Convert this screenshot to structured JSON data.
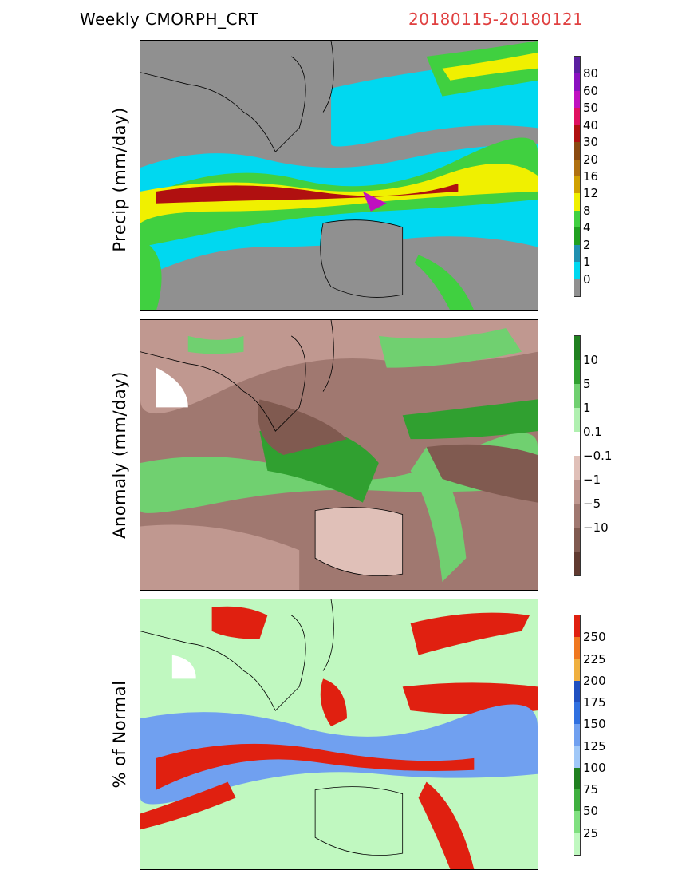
{
  "header": {
    "title": "Weekly  CMORPH_CRT",
    "date_range": "20180115-20180121",
    "date_color": "#e04040"
  },
  "panels": [
    {
      "id": "precip",
      "ylabel": "Precip  (mm/day)",
      "colorbar": {
        "colors": [
          "#5a1fa0",
          "#8a10c0",
          "#c010c0",
          "#e01060",
          "#b01010",
          "#8a4a10",
          "#b07010",
          "#d0a000",
          "#f0f000",
          "#40d040",
          "#20a020",
          "#2090b0",
          "#00d8f0",
          "#909090"
        ],
        "labels": [
          "80",
          "60",
          "50",
          "40",
          "30",
          "20",
          "16",
          "12",
          "8",
          "4",
          "2",
          "1",
          "0"
        ]
      }
    },
    {
      "id": "anomaly",
      "ylabel": "Anomaly  (mm/day)",
      "colorbar": {
        "colors": [
          "#208020",
          "#30a030",
          "#70d070",
          "#b0f0b0",
          "#ffffff",
          "#e0c0b8",
          "#c09890",
          "#a07870",
          "#805a50",
          "#603a30"
        ],
        "labels": [
          "10",
          "5",
          "1",
          "0.1",
          "−0.1",
          "−1",
          "−5",
          "−10"
        ]
      }
    },
    {
      "id": "percent",
      "ylabel": "% of Normal",
      "colorbar": {
        "colors": [
          "#e02010",
          "#f07820",
          "#f0b040",
          "#2050c0",
          "#3070e0",
          "#70a0f0",
          "#a0c8f8",
          "#208020",
          "#40b040",
          "#80e080",
          "#c0f8c0"
        ],
        "labels": [
          "250",
          "225",
          "200",
          "175",
          "150",
          "125",
          "100",
          "75",
          "50",
          "25"
        ]
      }
    }
  ]
}
